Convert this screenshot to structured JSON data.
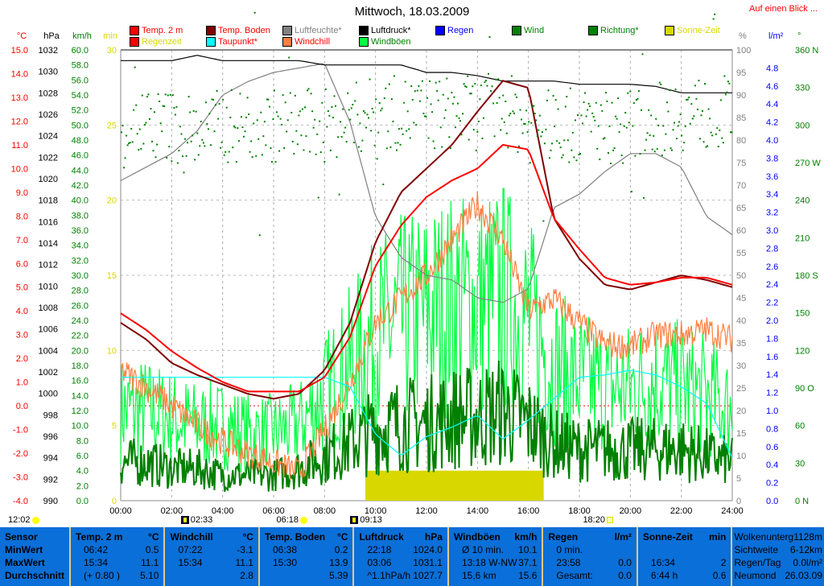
{
  "header": {
    "title": "Mittwoch, 18.03.2009",
    "glance_link": "Auf einen Blick ..."
  },
  "legend": [
    {
      "label": "Temp. 2 m",
      "color": "#ff0000",
      "text_color": "#ff0000"
    },
    {
      "label": "Temp. Boden",
      "color": "#800000",
      "text_color": "#ff0000"
    },
    {
      "label": "Luftfeuchte*",
      "color": "#808080",
      "text_color": "#808080"
    },
    {
      "label": "Luftdruck*",
      "color": "#000000",
      "text_color": "#000000"
    },
    {
      "label": "Regen",
      "color": "#0000ff",
      "text_color": "#0000ff"
    },
    {
      "label": "Wind",
      "color": "#008000",
      "text_color": "#008000"
    },
    {
      "label": "Richtung*",
      "color": "#008000",
      "text_color": "#008000"
    },
    {
      "label": "Sonne-Zeit",
      "color": "#d8d800",
      "text_color": "#d8d800"
    },
    {
      "label": "Regenzeit",
      "color": "#ff0000",
      "text_color": "#d8d800"
    },
    {
      "label": "Taupunkt*",
      "color": "#00ffff",
      "text_color": "#ff0000"
    },
    {
      "label": "Windchill",
      "color": "#ff8040",
      "text_color": "#ff0000"
    },
    {
      "label": "Windböen",
      "color": "#00ff40",
      "text_color": "#008000"
    }
  ],
  "chart_data": {
    "type": "line",
    "title": "Mittwoch, 18.03.2009",
    "x_ticks": [
      "00:00",
      "02:00",
      "04:00",
      "06:00",
      "08:00",
      "10:00",
      "12:00",
      "14:00",
      "16:00",
      "18:00",
      "20:00",
      "22:00",
      "24:00"
    ],
    "axes": {
      "temp": {
        "unit": "°C",
        "range": [
          -4,
          15
        ],
        "step": 1,
        "color": "#ff0000"
      },
      "pressure": {
        "unit": "hPa",
        "range": [
          990,
          1032
        ],
        "step": 2,
        "color": "#000000"
      },
      "wind": {
        "unit": "km/h",
        "range": [
          0,
          60
        ],
        "step": 2,
        "color": "#008000"
      },
      "sun": {
        "unit": "min",
        "range": [
          0,
          30
        ],
        "step": 5,
        "color": "#d8d800"
      },
      "humidity": {
        "unit": "%",
        "range": [
          0,
          100
        ],
        "step": 5,
        "color": "#808080"
      },
      "rain": {
        "unit": "l/m²",
        "range": [
          0,
          5
        ],
        "step": 0.2,
        "color": "#0000ff"
      },
      "direction": {
        "unit": "°",
        "range": [
          0,
          360
        ],
        "step": 30,
        "color": "#008000",
        "labels": {
          "0": "0 N",
          "90": "90 O",
          "180": "180 S",
          "270": "270 W",
          "360": "360 N"
        }
      }
    },
    "hours": [
      0,
      1,
      2,
      3,
      4,
      5,
      6,
      7,
      8,
      9,
      10,
      11,
      12,
      13,
      14,
      15,
      16,
      17,
      18,
      19,
      20,
      21,
      22,
      23,
      24
    ],
    "series": [
      {
        "name": "Temp. 2 m",
        "axis": "temp",
        "color": "#ff0000",
        "values": [
          3.9,
          3.2,
          2.3,
          1.6,
          1.0,
          0.6,
          0.6,
          0.6,
          1.2,
          2.9,
          5.9,
          7.6,
          8.8,
          9.5,
          10.0,
          11.0,
          10.8,
          7.9,
          6.6,
          5.4,
          5.1,
          5.2,
          5.4,
          5.4,
          5.1
        ]
      },
      {
        "name": "Temp. Boden",
        "axis": "temp",
        "color": "#800000",
        "values": [
          3.5,
          2.8,
          1.8,
          1.3,
          0.9,
          0.5,
          0.3,
          0.5,
          1.5,
          3.5,
          6.9,
          9.0,
          10.0,
          11.0,
          12.4,
          13.7,
          13.4,
          7.9,
          6.2,
          5.1,
          4.9,
          5.2,
          5.5,
          5.3,
          5.0
        ]
      },
      {
        "name": "Luftfeuchte*",
        "axis": "humidity",
        "color": "#808080",
        "values": [
          71,
          74,
          77,
          82,
          90,
          93,
          95,
          96,
          97,
          84,
          63,
          54,
          50,
          49,
          45,
          44,
          47,
          65,
          68,
          73,
          77,
          77,
          74,
          63,
          59
        ]
      },
      {
        "name": "Luftdruck*",
        "axis": "pressure",
        "color": "#000000",
        "values": [
          1031.0,
          1031.0,
          1031.0,
          1031.5,
          1031.0,
          1031.0,
          1031.0,
          1031.0,
          1030.6,
          1030.6,
          1030.6,
          1030.6,
          1029.9,
          1029.9,
          1029.6,
          1029.1,
          1029.1,
          1029.1,
          1028.8,
          1028.8,
          1028.8,
          1028.6,
          1028.0,
          1028.0,
          1028.0
        ]
      },
      {
        "name": "Windchill",
        "axis": "temp",
        "color": "#ff8040",
        "values": [
          1.5,
          0.8,
          0,
          -0.8,
          -1.5,
          -2.0,
          -2.4,
          -2.8,
          -1.0,
          1.0,
          3.5,
          4.5,
          5.5,
          7.0,
          8.5,
          7.0,
          4.0,
          4.5,
          3.5,
          2.6,
          2.5,
          3.0,
          3.0,
          3.2,
          2.8
        ]
      },
      {
        "name": "Taupunkt*",
        "axis": "temp",
        "color": "#00ffff",
        "values": [
          1.2,
          1.2,
          1.2,
          1.2,
          1.2,
          1.2,
          1.2,
          1.2,
          1.2,
          0.8,
          -1.2,
          -2.1,
          -1.3,
          -0.9,
          -0.4,
          -1.4,
          -0.6,
          0.3,
          1.2,
          1.3,
          1.5,
          1.3,
          0.8,
          0.1,
          -2.2
        ]
      },
      {
        "name": "Windböen",
        "axis": "wind",
        "color": "#00ff40",
        "values": [
          12,
          12,
          11,
          10,
          10,
          9,
          9,
          10,
          14,
          18,
          22,
          24,
          25,
          26,
          26,
          27,
          24,
          18,
          16,
          15,
          15,
          16,
          15,
          14,
          12
        ]
      },
      {
        "name": "Wind",
        "axis": "wind",
        "color": "#008000",
        "values": [
          6,
          6,
          5,
          5,
          4,
          4,
          4,
          5,
          7,
          9,
          11,
          12,
          12,
          13,
          13,
          14,
          12,
          9,
          8,
          8,
          8,
          8,
          8,
          7,
          6
        ]
      },
      {
        "name": "Richtung*",
        "axis": "direction",
        "color": "#008000",
        "values": [
          300,
          300,
          300,
          295,
          300,
          300,
          300,
          300,
          300,
          305,
          310,
          310,
          310,
          310,
          310,
          315,
          300,
          300,
          300,
          300,
          300,
          305,
          310,
          310,
          310
        ]
      }
    ],
    "sun_bar": {
      "start_hour": 9.6,
      "end_hour": 16.6,
      "value_min": 2
    },
    "zero_line": {
      "axis": "temp",
      "value": 0,
      "color": "#ff0000"
    }
  },
  "markers": [
    {
      "label": "12:02",
      "icon": "sun-icon",
      "hour": -4.6
    },
    {
      "label": "02:33",
      "icon": "moon-icon",
      "hour": 2.55
    },
    {
      "label": "06:18",
      "icon": "sun-icon",
      "hour": 6.3
    },
    {
      "label": "09:13",
      "icon": "moon-icon",
      "hour": 9.2
    },
    {
      "label": "18:20",
      "icon": "sunset-icon",
      "hour": 18.33
    }
  ],
  "panel": {
    "sensor": [
      "Sensor",
      "MinWert",
      "MaxWert",
      "Durchschnitt"
    ],
    "temp2m": {
      "title": "Temp. 2 m",
      "unit": "°C",
      "rows": [
        [
          "06:42",
          "0.5"
        ],
        [
          "15:34",
          "11.1"
        ],
        [
          "(+ 0.80 )",
          "5.10"
        ]
      ]
    },
    "windchill": {
      "title": "Windchill",
      "unit": "°C",
      "rows": [
        [
          "07:22",
          "-3.1"
        ],
        [
          "15:34",
          "11.1"
        ],
        [
          "",
          "2.8"
        ]
      ]
    },
    "boden": {
      "title": "Temp. Boden",
      "unit": "°C",
      "rows": [
        [
          "06:38",
          "0.2"
        ],
        [
          "15:30",
          "13.9"
        ],
        [
          "",
          "5.39"
        ]
      ]
    },
    "druck": {
      "title": "Luftdruck",
      "unit": "hPa",
      "rows": [
        [
          "22:18",
          "1024.0"
        ],
        [
          "03:06",
          "1031.1"
        ],
        [
          "^1.1hPa/h",
          "1027.7"
        ]
      ]
    },
    "boeen": {
      "title": "Windböen",
      "unit": "km/h",
      "rows": [
        [
          "Ø 10 min.",
          "10.1"
        ],
        [
          "13:18  W-NW",
          "37.1"
        ],
        [
          "15,6 km",
          "15.6"
        ]
      ]
    },
    "regen": {
      "title": "Regen",
      "unit": "l/m²",
      "rows": [
        [
          "0 min.",
          ""
        ],
        [
          "23:58",
          "0.0"
        ],
        [
          "Gesamt:",
          "0.0"
        ]
      ]
    },
    "sonne": {
      "title": "Sonne-Zeit",
      "unit": "min",
      "rows": [
        [
          "",
          ""
        ],
        [
          "16:34",
          "2"
        ],
        [
          "6:44 h",
          "0.6"
        ]
      ]
    },
    "info": [
      [
        "Wolkenunterg",
        "1128m"
      ],
      [
        "Sichtweite",
        "6-12km"
      ],
      [
        "Regen/Tag",
        "0.0l/m²"
      ],
      [
        "Neumond",
        "26.03.09"
      ]
    ]
  }
}
